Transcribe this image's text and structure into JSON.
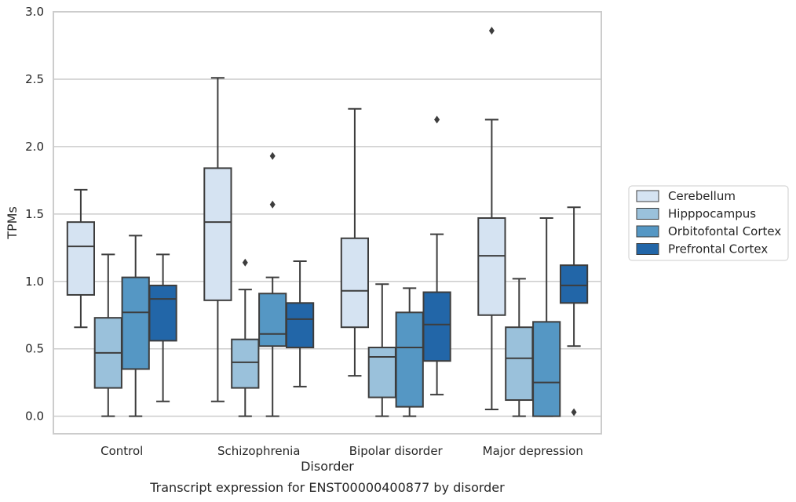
{
  "chart_data": {
    "type": "box",
    "title": "",
    "caption": "Transcript expression for ENST00000400877 by disorder",
    "xlabel": "Disorder",
    "ylabel": "TPMs",
    "ylim": [
      -0.13,
      3.0
    ],
    "yticks": [
      0.0,
      0.5,
      1.0,
      1.5,
      2.0,
      2.5,
      3.0
    ],
    "ytick_labels": [
      "0.0",
      "0.5",
      "1.0",
      "1.5",
      "2.0",
      "2.5",
      "3.0"
    ],
    "grid": "horizontal",
    "legend_position": "right",
    "categories": [
      "Control",
      "Schizophrenia",
      "Bipolar disorder",
      "Major depression"
    ],
    "series": [
      {
        "name": "Cerebellum",
        "color": "#d5e3f2",
        "boxes": [
          {
            "whislo": 0.66,
            "q1": 0.9,
            "med": 1.26,
            "q3": 1.44,
            "whishi": 1.68,
            "fliers": []
          },
          {
            "whislo": 0.11,
            "q1": 0.86,
            "med": 1.44,
            "q3": 1.84,
            "whishi": 2.51,
            "fliers": []
          },
          {
            "whislo": 0.3,
            "q1": 0.66,
            "med": 0.93,
            "q3": 1.32,
            "whishi": 2.28,
            "fliers": []
          },
          {
            "whislo": 0.05,
            "q1": 0.75,
            "med": 1.19,
            "q3": 1.47,
            "whishi": 2.2,
            "fliers": [
              2.86
            ]
          }
        ]
      },
      {
        "name": "Hipppocampus",
        "color": "#9ac1db",
        "boxes": [
          {
            "whislo": 0.0,
            "q1": 0.21,
            "med": 0.47,
            "q3": 0.73,
            "whishi": 1.2,
            "fliers": []
          },
          {
            "whislo": 0.0,
            "q1": 0.21,
            "med": 0.4,
            "q3": 0.57,
            "whishi": 0.94,
            "fliers": [
              1.14
            ]
          },
          {
            "whislo": 0.0,
            "q1": 0.14,
            "med": 0.44,
            "q3": 0.51,
            "whishi": 0.98,
            "fliers": []
          },
          {
            "whislo": 0.0,
            "q1": 0.12,
            "med": 0.43,
            "q3": 0.66,
            "whishi": 1.02,
            "fliers": []
          }
        ]
      },
      {
        "name": "Orbitofontal Cortex",
        "color": "#5597c4",
        "boxes": [
          {
            "whislo": 0.0,
            "q1": 0.35,
            "med": 0.77,
            "q3": 1.03,
            "whishi": 1.34,
            "fliers": []
          },
          {
            "whislo": 0.0,
            "q1": 0.52,
            "med": 0.61,
            "q3": 0.91,
            "whishi": 1.03,
            "fliers": [
              1.57,
              1.93
            ]
          },
          {
            "whislo": 0.0,
            "q1": 0.07,
            "med": 0.51,
            "q3": 0.77,
            "whishi": 0.95,
            "fliers": []
          },
          {
            "whislo": 0.0,
            "q1": 0.0,
            "med": 0.25,
            "q3": 0.7,
            "whishi": 1.47,
            "fliers": []
          }
        ]
      },
      {
        "name": "Prefrontal Cortex",
        "color": "#2266a8",
        "boxes": [
          {
            "whislo": 0.11,
            "q1": 0.56,
            "med": 0.87,
            "q3": 0.97,
            "whishi": 1.2,
            "fliers": []
          },
          {
            "whislo": 0.22,
            "q1": 0.51,
            "med": 0.72,
            "q3": 0.84,
            "whishi": 1.15,
            "fliers": []
          },
          {
            "whislo": 0.16,
            "q1": 0.41,
            "med": 0.68,
            "q3": 0.92,
            "whishi": 1.35,
            "fliers": [
              2.2
            ]
          },
          {
            "whislo": 0.52,
            "q1": 0.84,
            "med": 0.97,
            "q3": 1.12,
            "whishi": 1.55,
            "fliers": [
              0.03
            ]
          }
        ]
      }
    ]
  }
}
